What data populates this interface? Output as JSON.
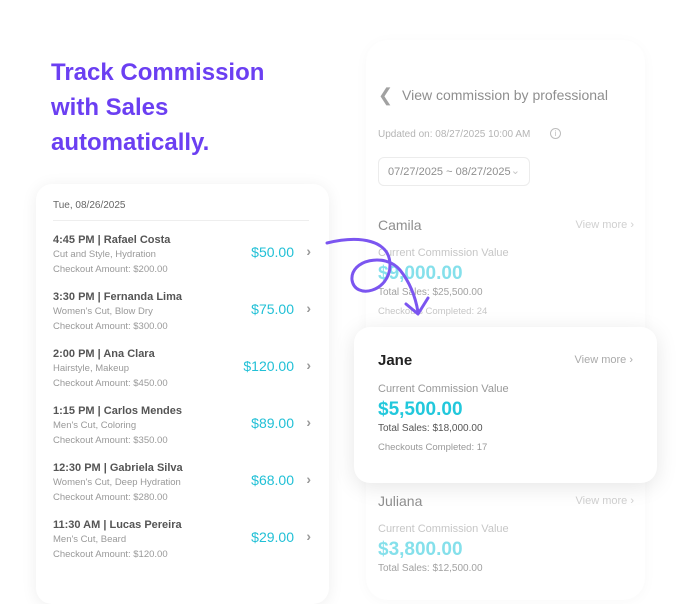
{
  "headline": [
    "Track Commission",
    "with Sales",
    "automatically."
  ],
  "commission_screen": {
    "title": "View commission by professional",
    "updated": "Updated on: 08/27/2025 10:00 AM",
    "date_range": "07/27/2025 ~ 08/27/2025",
    "view_more": "View more",
    "professionals": [
      {
        "name": "Camila",
        "ccv_label": "Current Commission Value",
        "value": "$9,000.00",
        "total_sales": "Total Sales: $25,500.00",
        "checkouts": "Checkouts Completed: 24"
      },
      {
        "name": "Jane",
        "ccv_label": "Current Commission Value",
        "value": "$5,500.00",
        "total_sales": "Total Sales: $18,000.00",
        "checkouts": "Checkouts Completed: 17"
      },
      {
        "name": "Juliana",
        "ccv_label": "Current Commission Value",
        "value": "$3,800.00",
        "total_sales": "Total Sales: $12,500.00"
      }
    ]
  },
  "sales_list": {
    "date": "Tue, 08/26/2025",
    "rows": [
      {
        "title": "4:45 PM | Rafael Costa",
        "services": "Cut and Style, Hydration",
        "checkout": "Checkout Amount: $200.00",
        "commission": "$50.00"
      },
      {
        "title": "3:30 PM | Fernanda Lima",
        "services": "Women's Cut, Blow Dry",
        "checkout": "Checkout Amount: $300.00",
        "commission": "$75.00"
      },
      {
        "title": "2:00 PM | Ana Clara",
        "services": "Hairstyle, Makeup",
        "checkout": "Checkout Amount: $450.00",
        "commission": "$120.00"
      },
      {
        "title": "1:15 PM | Carlos Mendes",
        "services": "Men's Cut, Coloring",
        "checkout": "Checkout Amount: $350.00",
        "commission": "$89.00"
      },
      {
        "title": "12:30 PM | Gabriela Silva",
        "services": "Women's Cut, Deep Hydration",
        "checkout": "Checkout Amount: $280.00",
        "commission": "$68.00"
      },
      {
        "title": "11:30 AM | Lucas Pereira",
        "services": "Men's Cut, Beard",
        "checkout": "Checkout Amount: $120.00",
        "commission": "$29.00"
      }
    ]
  },
  "colors": {
    "accent": "#6b3ff2",
    "money": "#22c8dc"
  }
}
